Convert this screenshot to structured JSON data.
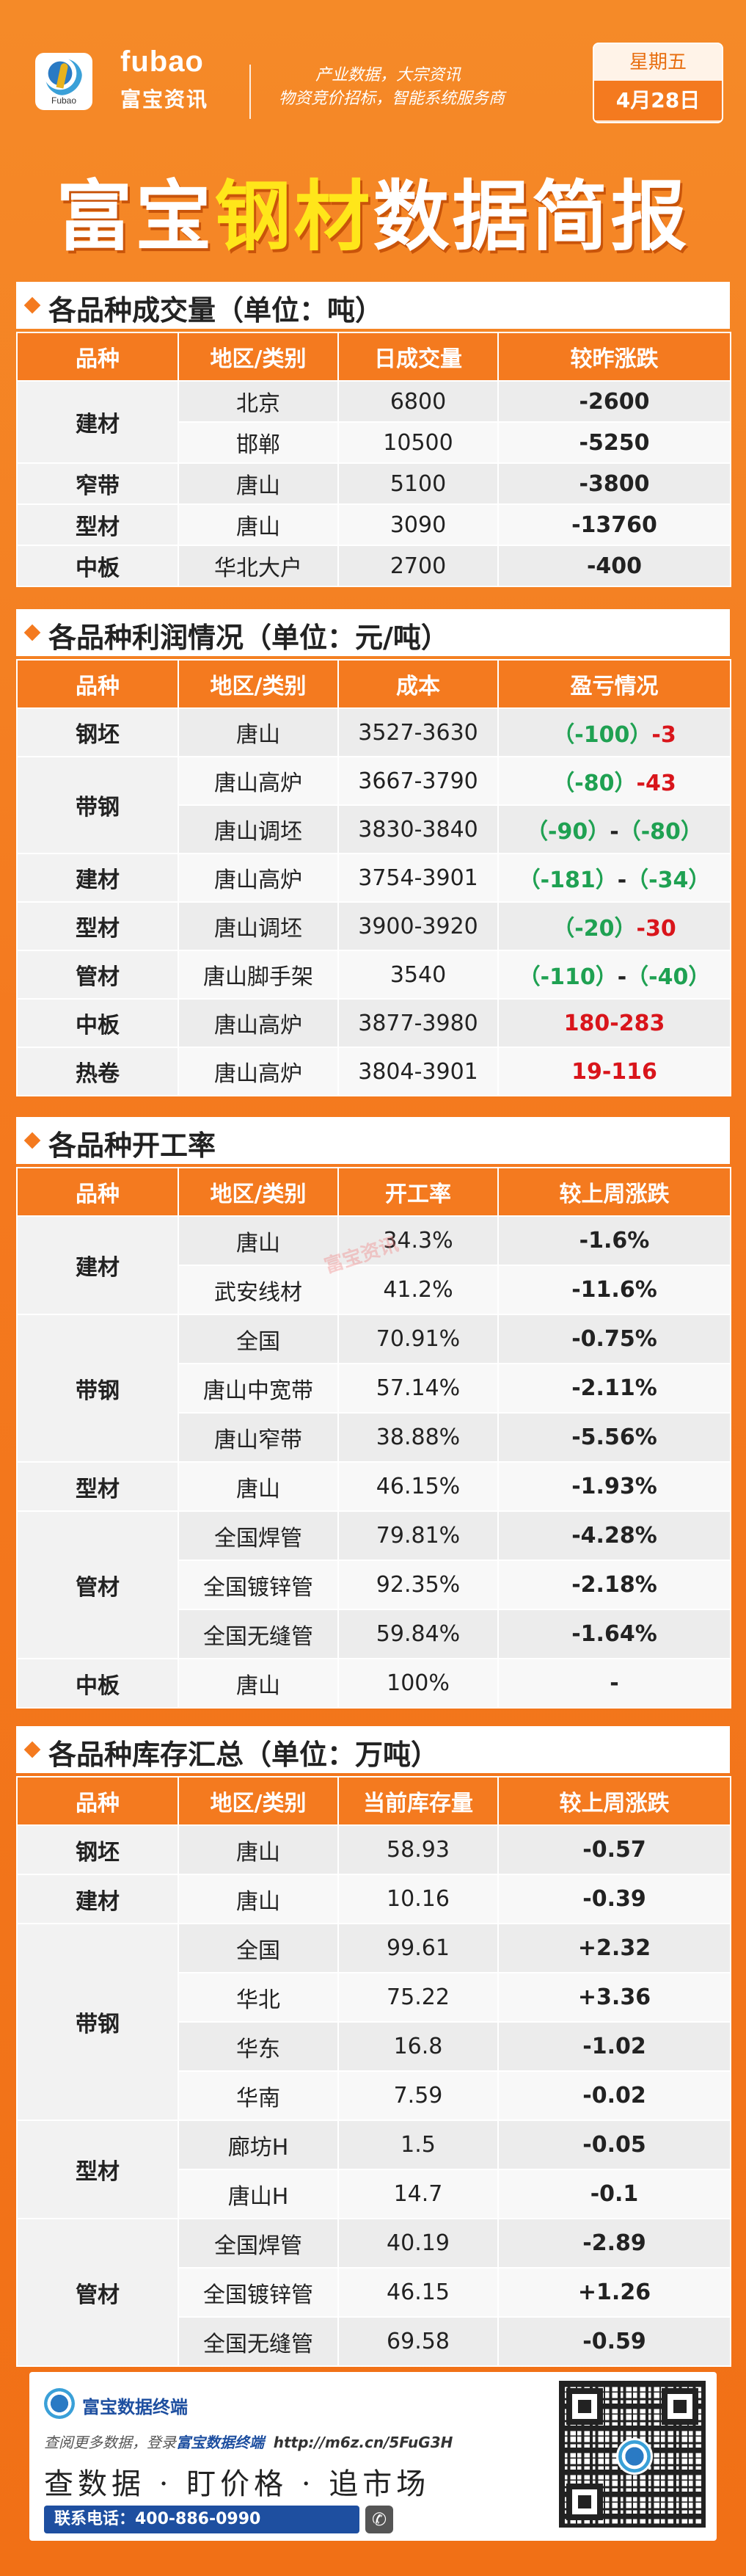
{
  "header": {
    "brand_en": "fubao",
    "brand_cn": "富宝资讯",
    "logo_caption": "Fubao",
    "slogan_line1": "产业数据，大宗资讯",
    "slogan_line2": "物资竞价招标，智能系统服务商",
    "weekday": "星期五",
    "date": "4月28日",
    "title_part1": "富宝",
    "title_highlight": "钢材",
    "title_part2": "数据简报"
  },
  "sections": {
    "volume": {
      "title": "各品种成交量（单位：吨）",
      "headers": [
        "品种",
        "地区/类别",
        "日成交量",
        "较昨涨跌"
      ]
    },
    "profit": {
      "title": "各品种利润情况（单位：元/吨）",
      "headers": [
        "品种",
        "地区/类别",
        "成本",
        "盈亏情况"
      ]
    },
    "operating": {
      "title": "各品种开工率",
      "headers": [
        "品种",
        "地区/类别",
        "开工率",
        "较上周涨跌"
      ]
    },
    "inventory": {
      "title": "各品种库存汇总（单位：万吨）",
      "headers": [
        "品种",
        "地区/类别",
        "当前库存量",
        "较上周涨跌"
      ]
    }
  },
  "volume_rows": [
    {
      "cat": "建材",
      "region": "北京",
      "value": "6800",
      "change": "-2600"
    },
    {
      "cat": "建材",
      "region": "邯郸",
      "value": "10500",
      "change": "-5250"
    },
    {
      "cat": "窄带",
      "region": "唐山",
      "value": "5100",
      "change": "-3800"
    },
    {
      "cat": "型材",
      "region": "唐山",
      "value": "3090",
      "change": "-13760"
    },
    {
      "cat": "中板",
      "region": "华北大户",
      "value": "2700",
      "change": "-400"
    }
  ],
  "profit_rows": [
    {
      "cat": "钢坯",
      "region": "唐山",
      "cost": "3527-3630",
      "p1": "（-100）",
      "sep": "-",
      "p2": "3"
    },
    {
      "cat": "带钢",
      "region": "唐山高炉",
      "cost": "3667-3790",
      "p1": "（-80）",
      "sep": "-",
      "p2": "43"
    },
    {
      "cat": "带钢",
      "region": "唐山调坯",
      "cost": "3830-3840",
      "p1": "（-90）",
      "sep": "-",
      "p2": "（-80）"
    },
    {
      "cat": "建材",
      "region": "唐山高炉",
      "cost": "3754-3901",
      "p1": "（-181）",
      "sep": "-",
      "p2": "（-34）"
    },
    {
      "cat": "型材",
      "region": "唐山调坯",
      "cost": "3900-3920",
      "p1": "（-20）",
      "sep": "-",
      "p2": "30"
    },
    {
      "cat": "管材",
      "region": "唐山脚手架",
      "cost": "3540",
      "p1": "（-110）",
      "sep": "-",
      "p2": "（-40）"
    },
    {
      "cat": "中板",
      "region": "唐山高炉",
      "cost": "3877-3980",
      "p1": "180",
      "sep": "-",
      "p2": "283"
    },
    {
      "cat": "热卷",
      "region": "唐山高炉",
      "cost": "3804-3901",
      "p1": "19",
      "sep": "-",
      "p2": "116"
    }
  ],
  "operating_rows": [
    {
      "cat": "建材",
      "region": "唐山",
      "rate": "34.3%",
      "change": "-1.6%"
    },
    {
      "cat": "建材",
      "region": "武安线材",
      "rate": "41.2%",
      "change": "-11.6%"
    },
    {
      "cat": "带钢",
      "region": "全国",
      "rate": "70.91%",
      "change": "-0.75%"
    },
    {
      "cat": "带钢",
      "region": "唐山中宽带",
      "rate": "57.14%",
      "change": "-2.11%"
    },
    {
      "cat": "带钢",
      "region": "唐山窄带",
      "rate": "38.88%",
      "change": "-5.56%"
    },
    {
      "cat": "型材",
      "region": "唐山",
      "rate": "46.15%",
      "change": "-1.93%"
    },
    {
      "cat": "管材",
      "region": "全国焊管",
      "rate": "79.81%",
      "change": "-4.28%"
    },
    {
      "cat": "管材",
      "region": "全国镀锌管",
      "rate": "92.35%",
      "change": "-2.18%"
    },
    {
      "cat": "管材",
      "region": "全国无缝管",
      "rate": "59.84%",
      "change": "-1.64%"
    },
    {
      "cat": "中板",
      "region": "唐山",
      "rate": "100%",
      "change": "-"
    }
  ],
  "inventory_rows": [
    {
      "cat": "钢坯",
      "region": "唐山",
      "stock": "58.93",
      "change": "-0.57"
    },
    {
      "cat": "建材",
      "region": "唐山",
      "stock": "10.16",
      "change": "-0.39"
    },
    {
      "cat": "带钢",
      "region": "全国",
      "stock": "99.61",
      "change": "+2.32"
    },
    {
      "cat": "带钢",
      "region": "华北",
      "stock": "75.22",
      "change": "+3.36"
    },
    {
      "cat": "带钢",
      "region": "华东",
      "stock": "16.8",
      "change": "-1.02"
    },
    {
      "cat": "带钢",
      "region": "华南",
      "stock": "7.59",
      "change": "-0.02"
    },
    {
      "cat": "型材",
      "region": "廊坊H",
      "stock": "1.5",
      "change": "-0.05"
    },
    {
      "cat": "型材",
      "region": "唐山H",
      "stock": "14.7",
      "change": "-0.1"
    },
    {
      "cat": "管材",
      "region": "全国焊管",
      "stock": "40.19",
      "change": "-2.89"
    },
    {
      "cat": "管材",
      "region": "全国镀锌管",
      "stock": "46.15",
      "change": "+1.26"
    },
    {
      "cat": "管材",
      "region": "全国无缝管",
      "stock": "69.58",
      "change": "-0.59"
    }
  ],
  "watermark": "富宝资讯",
  "footer": {
    "brand": "富宝数据终端",
    "line_prefix": "查阅更多数据，登录",
    "line_brand": "富宝数据终端",
    "line_url": "http://m6z.cn/5FuG3H",
    "slogan": "查数据 · 盯价格 · 追市场",
    "phone": "联系电话：400-886-0990",
    "phone_icon": "phone-icon",
    "qr_icon": "qr-code-icon"
  },
  "colors": {
    "accent": "#f47a1f",
    "up": "#d9151b",
    "down": "#1fa152",
    "title_highlight": "#ffe61a",
    "footer_blue": "#1e4fa0"
  }
}
